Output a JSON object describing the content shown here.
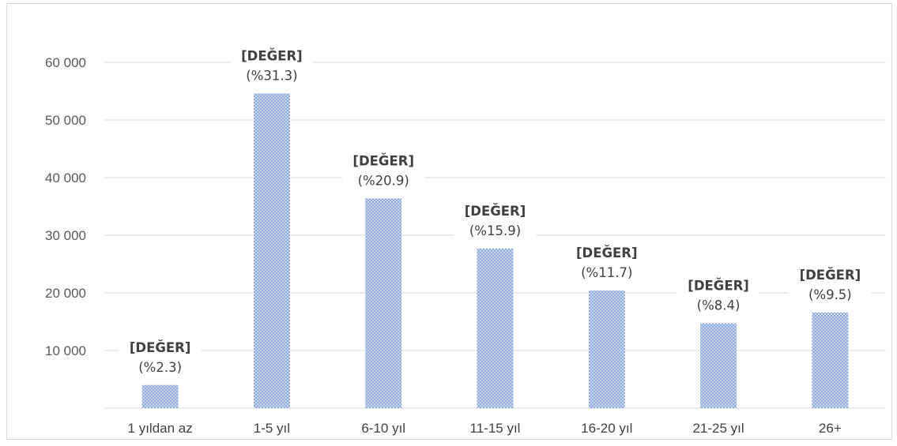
{
  "chart_data": {
    "type": "bar",
    "title": "",
    "xlabel": "",
    "ylabel": "",
    "categories": [
      "1 yıldan az",
      "1-5 yıl",
      "6-10 yıl",
      "11-15 yıl",
      "16-20 yıl",
      "21-25 yıl",
      "26+"
    ],
    "values": [
      4000,
      54600,
      36400,
      27700,
      20400,
      14700,
      16600
    ],
    "data_labels": [
      "[DEĞER]",
      "[DEĞER]",
      "[DEĞER]",
      "[DEĞER]",
      "[DEĞER]",
      "[DEĞER]",
      "[DEĞER]"
    ],
    "percent_labels": [
      "(%2.3)",
      "(%31.3)",
      "(%20.9)",
      "(%15.9)",
      "(%11.7)",
      "(%8.4)",
      "(%9.5)"
    ],
    "y_ticks": [
      10000,
      20000,
      30000,
      40000,
      50000,
      60000
    ],
    "y_tick_labels": [
      "10 000",
      "20 000",
      "30 000",
      "40 000",
      "50 000",
      "60 000"
    ],
    "ylim": [
      0,
      60000
    ],
    "grid": true,
    "legend": "none",
    "colors": {
      "bar": "#8faadc",
      "bar_light": "#c9d6ee",
      "grid": "#d9d9d9",
      "text": "#595959"
    }
  }
}
